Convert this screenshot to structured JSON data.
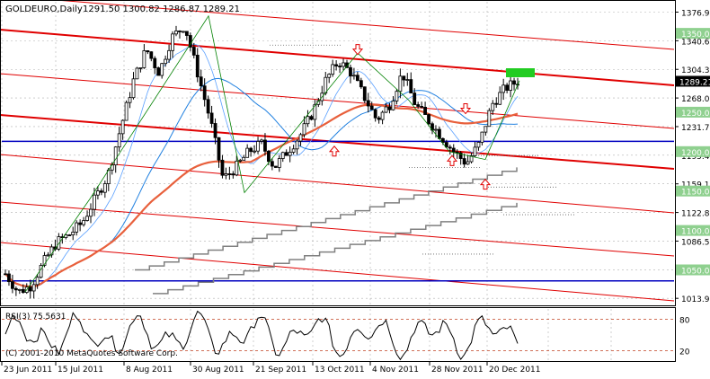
{
  "header": {
    "symbol": "GOLDEURO,Daily",
    "ohlc": "1291.50 1300.82 1286.87 1289.21"
  },
  "copyright": "(C) 2001-2010 MetaQuotes Software Corp.",
  "rsi_label": "RSI(3) 75.5631",
  "price_scale": {
    "ticks": [
      "1376.90",
      "1340.60",
      "1304.30",
      "1268.00",
      "1231.70",
      "1195.40",
      "1159.10",
      "1122.80",
      "1086.50",
      "1050.20",
      "1013.90"
    ],
    "current_price": "1289.21",
    "level_labels": [
      "1350.00",
      "1250.00",
      "1200.00",
      "1150.00",
      "1100.00",
      "1050.00"
    ]
  },
  "rsi_scale": {
    "ticks": [
      "80",
      "20"
    ]
  },
  "time_axis": [
    "23 Jun 2011",
    "15 Jul 2011",
    "8 Aug 2011",
    "30 Aug 2011",
    "21 Sep 2011",
    "13 Oct 2011",
    "4 Nov 2011",
    "28 Nov 2011",
    "20 Dec 2011"
  ],
  "colors": {
    "background": "#ffffff",
    "grid": "#b0b0b0",
    "candle": "#000000",
    "channel": "#e00000",
    "horizontal_level": "#0000c0",
    "ma_fast": "#5aa0ff",
    "ma_mid": "#2080e0",
    "ma_slow": "#e8603c",
    "zigzag": "#008000",
    "highlight_box": "#22cc22",
    "step_indicator": "#808080",
    "arrows": "#e00000"
  },
  "chart_data": {
    "type": "candlestick",
    "title": "GOLDEURO,Daily",
    "ylim": [
      1005,
      1390
    ],
    "x": [
      "23 Jun 2011",
      "15 Jul 2011",
      "8 Aug 2011",
      "30 Aug 2011",
      "21 Sep 2011",
      "13 Oct 2011",
      "4 Nov 2011",
      "28 Nov 2011",
      "20 Dec 2011"
    ],
    "close_path_anchors": [
      1045,
      1022,
      1030,
      1060,
      1085,
      1095,
      1110,
      1140,
      1170,
      1230,
      1290,
      1330,
      1300,
      1345,
      1360,
      1300,
      1240,
      1165,
      1180,
      1200,
      1210,
      1180,
      1200,
      1220,
      1250,
      1290,
      1315,
      1300,
      1270,
      1240,
      1260,
      1300,
      1260,
      1240,
      1220,
      1200,
      1185,
      1210,
      1260,
      1280,
      1289.21
    ],
    "horizontal_levels": [
      1213,
      1036
    ],
    "rsi": {
      "period": 3,
      "last": 75.5631,
      "levels": [
        80,
        20
      ]
    }
  }
}
